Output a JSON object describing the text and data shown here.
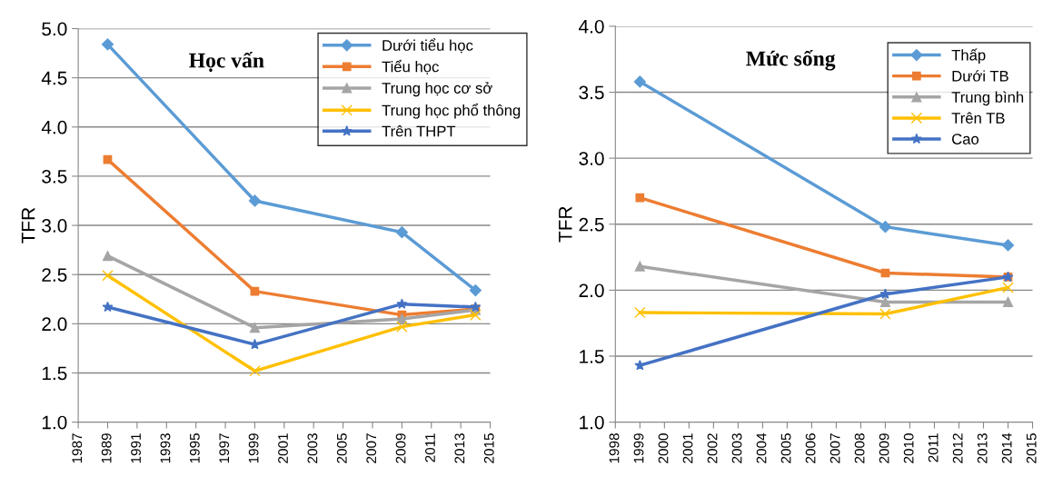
{
  "chart_data": [
    {
      "type": "line",
      "title": "Học vấn",
      "ylabel": "TFR",
      "x": [
        1989,
        1999,
        2009,
        2014
      ],
      "xlim": [
        1987,
        2015
      ],
      "xticks": [
        1987,
        1989,
        1991,
        1993,
        1995,
        1997,
        1999,
        2001,
        2003,
        2005,
        2007,
        2009,
        2011,
        2013,
        2015
      ],
      "ylim": [
        1.0,
        5.0
      ],
      "yticks": [
        {
          "value": 1.0,
          "label": "1.0"
        },
        1.5,
        {
          "value": 2.0,
          "label": "2.0"
        },
        2.5,
        {
          "value": 3.0,
          "label": "3.0"
        },
        3.5,
        {
          "value": 4.0,
          "label": "4.0"
        },
        4.5,
        {
          "value": 5.0,
          "label": "5.0"
        }
      ],
      "grid": "y",
      "legend": "top right",
      "series": [
        {
          "name": "Dưới tiểu học",
          "color": "#5b9bd5",
          "marker": "diamond",
          "values": [
            4.84,
            3.25,
            2.93,
            2.34
          ]
        },
        {
          "name": "Tiểu học",
          "color": "#ed7d31",
          "marker": "square",
          "values": [
            3.67,
            2.33,
            2.09,
            2.15
          ]
        },
        {
          "name": "Trung học cơ sở",
          "color": "#a5a5a5",
          "marker": "triangle",
          "values": [
            2.69,
            1.96,
            2.05,
            2.14
          ]
        },
        {
          "name": "Trung học phổ thông",
          "color": "#ffc000",
          "marker": "cross",
          "values": [
            2.49,
            1.52,
            1.97,
            2.09
          ]
        },
        {
          "name": "Trên THPT",
          "color": "#4472c4",
          "marker": "star",
          "values": [
            2.17,
            1.79,
            2.2,
            2.17
          ]
        }
      ]
    },
    {
      "type": "line",
      "title": "Mức sống",
      "ylabel": "TFR",
      "x": [
        1999,
        2009,
        2014
      ],
      "xlim": [
        1998,
        2015
      ],
      "xticks": [
        1998,
        1999,
        2000,
        2001,
        2002,
        2003,
        2004,
        2005,
        2006,
        2007,
        2008,
        2009,
        2010,
        2011,
        2012,
        2013,
        2014,
        2015
      ],
      "ylim": [
        1.0,
        4.0
      ],
      "yticks": [
        {
          "value": 1.0,
          "label": "1.0"
        },
        1.5,
        {
          "value": 2.0,
          "label": "2.0"
        },
        2.5,
        {
          "value": 3.0,
          "label": "3.0"
        },
        3.5,
        {
          "value": 4.0,
          "label": "4.0"
        }
      ],
      "grid": "y",
      "legend": "top right",
      "series": [
        {
          "name": "Thấp",
          "color": "#5b9bd5",
          "marker": "diamond",
          "values": [
            3.58,
            2.48,
            2.34
          ]
        },
        {
          "name": "Dưới TB",
          "color": "#ed7d31",
          "marker": "square",
          "values": [
            2.7,
            2.13,
            2.1
          ]
        },
        {
          "name": "Trung bình",
          "color": "#a5a5a5",
          "marker": "triangle",
          "values": [
            2.18,
            1.91,
            1.91
          ]
        },
        {
          "name": "Trên TB",
          "color": "#ffc000",
          "marker": "cross",
          "values": [
            1.83,
            1.82,
            2.02
          ]
        },
        {
          "name": "Cao",
          "color": "#4472c4",
          "marker": "star",
          "values": [
            1.43,
            1.97,
            2.1
          ]
        }
      ]
    }
  ]
}
